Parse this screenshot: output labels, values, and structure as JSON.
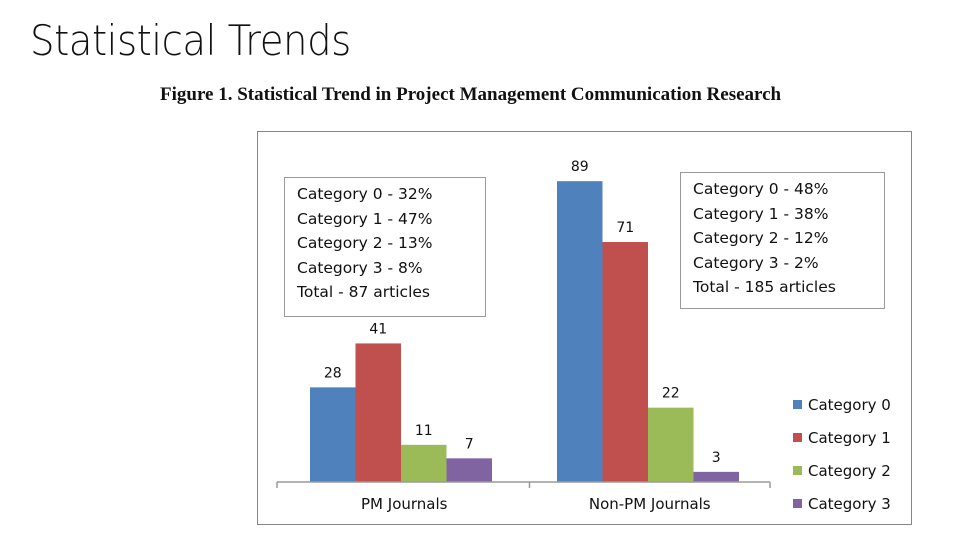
{
  "slide": {
    "title": "Statistical Trends",
    "figure_caption": "Figure 1. Statistical Trend in Project Management Communication Research"
  },
  "notes": {
    "left": [
      "Category 0 - 32%",
      "Category 1 - 47%",
      "Category 2 - 13%",
      "Category 3 - 8%",
      "Total - 87 articles"
    ],
    "right": [
      "Category 0 - 48%",
      "Category 1 - 38%",
      "Category 2 - 12%",
      "Category 3 - 2%",
      "Total - 185 articles"
    ]
  },
  "colors": {
    "Category 0": "#4f81bd",
    "Category 1": "#c0504d",
    "Category 2": "#9bbb59",
    "Category 3": "#8064a2",
    "axis": "#9a9a9a",
    "text": "#111111"
  },
  "chart_data": {
    "type": "bar",
    "title": "Figure 1. Statistical Trend in Project Management Communication Research",
    "categories": [
      "PM Journals",
      "Non-PM Journals"
    ],
    "series": [
      {
        "name": "Category 0",
        "values": [
          28,
          89
        ]
      },
      {
        "name": "Category 1",
        "values": [
          41,
          71
        ]
      },
      {
        "name": "Category 2",
        "values": [
          11,
          22
        ]
      },
      {
        "name": "Category 3",
        "values": [
          7,
          3
        ]
      }
    ],
    "xlabel": "",
    "ylabel": "",
    "ylim": [
      0,
      100
    ],
    "grid": false,
    "legend": "right"
  }
}
